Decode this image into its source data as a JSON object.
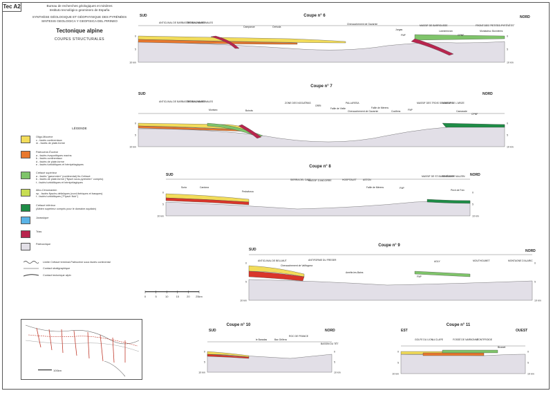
{
  "sheet": {
    "id": "Tec A2",
    "institutions": [
      "Bureau de recherches géologiques et minières",
      "Instituto tecnológico geominero de España"
    ],
    "synthesis": [
      "SYNTHÈSE GÉOLOGIQUE ET GÉOPHYSIQUE DES PYRÉNÉES",
      "SINTESIS GEOLOGICA Y GEOFISICA DEL PIRINEO"
    ],
    "title": "Tectonique alpine",
    "subtitle": "COUPES STRUCTURALES"
  },
  "colors": {
    "oligo_miocene": "#f2dc5a",
    "paleocene_eocene": "#e8782e",
    "paleocene_red": "#d9362a",
    "cretace_sup": "#7fc46a",
    "albo_cenomanien": "#c7dd52",
    "cretace_inf": "#1e8c46",
    "jurassique": "#5ab3e6",
    "trias": "#b8254e",
    "paleozoique": "#e2dfe7"
  },
  "legend": {
    "title": "LÉGENDE",
    "items": [
      {
        "key": "oligo_miocene",
        "text": "Oligo-Miocène\nc - faciès continentaux\nm - faciès de plate-forme"
      },
      {
        "key": "paleocene_eocene",
        "text": "Paléocène-Éocène\na - faciès évaporitiques marins\nb - faciès continentaux\nd - faciès de plate-forme\ne - faciès turbiditiques et hémipélagiques"
      },
      {
        "key": "cretace_sup",
        "text": "Crétacé supérieur\na - faciès \"garumnien\" (continental) fin-Crétacé\nb - faciès de plate-forme (\"flysch sous-pyrénéen\" compris)\nt - faciès turbiditiques et hémipélagiques"
      },
      {
        "key": "albo_cenomanien",
        "text": "Albo-Cénomanien\nnp - faciès flyschs-deltaïques (nord-ibériques et basques)\nt - faciès turbiditiques (\"Flysch Noir\")"
      },
      {
        "key": "cretace_inf",
        "text": "Crétacé inférieur\n(Albien supérieur compris pour le domaine aquitain)"
      },
      {
        "key": "jurassique",
        "text": "Jurassique"
      },
      {
        "key": "trias",
        "text": "Trias"
      },
      {
        "key": "paleozoique",
        "text": "Paléozoïque"
      }
    ],
    "lines": [
      "Limite Crétacé terminal-Paléocène sous faciès continental",
      "Contact stratigraphique",
      "Contact tectonique alpin"
    ]
  },
  "scale": {
    "ticks": [
      "0",
      "5",
      "10",
      "15",
      "20",
      "25km"
    ]
  },
  "map": {
    "label": "100km"
  },
  "sections": [
    {
      "title": "Coupe n° 6",
      "left": "SUD",
      "right": "NORD",
      "depth_left": [
        "0",
        "5",
        "10 km"
      ],
      "depth_right": [
        "0",
        "5",
        "10 km"
      ],
      "labels": [
        "ANTICLINAL DE BARBASTRO-BALAGUER",
        "SIERRAS MARGINALES",
        "Campanue",
        "Cerisola",
        "Chevauchement de Gavarnie",
        "Jurgas",
        "FNP",
        "MASSIF DE BARROUSSE",
        "Lannemezan",
        "CPNF",
        "FRONT DES \"PETITES PYRÉNÉES\"",
        "Montastruc",
        "Bonnières"
      ]
    },
    {
      "title": "Coupe n° 7",
      "left": "SUD",
      "right": "NORD",
      "depth_left": [
        "0",
        "5",
        "10 km"
      ],
      "depth_right": [
        "0",
        "5",
        "10 km"
      ],
      "labels": [
        "ANTICLINAL DE BARBASTRO-BALAGUER",
        "SIERRAS MARGINALES",
        "Monlsec",
        "Boixols",
        "ZONE DES NOGUÈRAS",
        "ORRI",
        "Faille de Vielle",
        "PALLARESA",
        "Chevauchement de Gavarnie",
        "Faille de Mérens",
        "Couflens",
        "FNP",
        "MASSIF DES TROIS SEIGNEURS",
        "MASSIF DE L'ARIZE",
        "Camarade",
        "CPNF"
      ]
    },
    {
      "title": "Coupe n° 8",
      "left": "SUD",
      "right": "NORD",
      "depth_left": [
        "0",
        "5",
        "10 km"
      ],
      "depth_right": [
        "0",
        "5",
        "10 km"
      ],
      "labels": [
        "Suria",
        "Cardona",
        "Pedraforca",
        "SIERRA DEL CADÍ",
        "MASSIF D'ANDORRE",
        "HOSPITALET",
        "ASTON",
        "Faille de Mérens",
        "FNP",
        "MASSIF DE ST-BARTHÉLEMY",
        "BASSIN DE NALZEN",
        "Pech de Foix"
      ]
    },
    {
      "title": "Coupe n° 9",
      "left": "SUD",
      "right": "NORD",
      "depth_left": [
        "0",
        "5",
        "10 km"
      ],
      "depth_right": [
        "0",
        "5",
        "10 km"
      ],
      "labels": [
        "ANTICLINAL DE BELLMUT",
        "Chevauchement de Vallfogona",
        "ANTIFORME DU FRESER",
        "Amélie-les-Bains",
        "AGLY",
        "FNP",
        "MOUTHOUMET",
        "MONTAGNE D'ALARIC"
      ]
    },
    {
      "title": "Coupe n° 10",
      "left": "SUD",
      "right": "NORD",
      "depth_left": [
        "0",
        "5",
        "10 km"
      ],
      "depth_right": [
        "0",
        "5",
        "10 km"
      ],
      "labels": [
        "le Baradas",
        "Bac Grillera",
        "ROC DE FRANCE",
        "BASSIN DU TÊT"
      ]
    },
    {
      "title": "Coupe n° 11",
      "left": "EST",
      "right": "OUEST",
      "depth_left": [
        "0",
        "5",
        "10 km"
      ],
      "depth_right": [
        "0",
        "5",
        "10 km"
      ],
      "labels": [
        "GOLFE DU LION",
        "LA CLAPE",
        "FOSSÉ DE NARBONNE",
        "FONTFROIDE",
        "Bizanet"
      ]
    }
  ]
}
